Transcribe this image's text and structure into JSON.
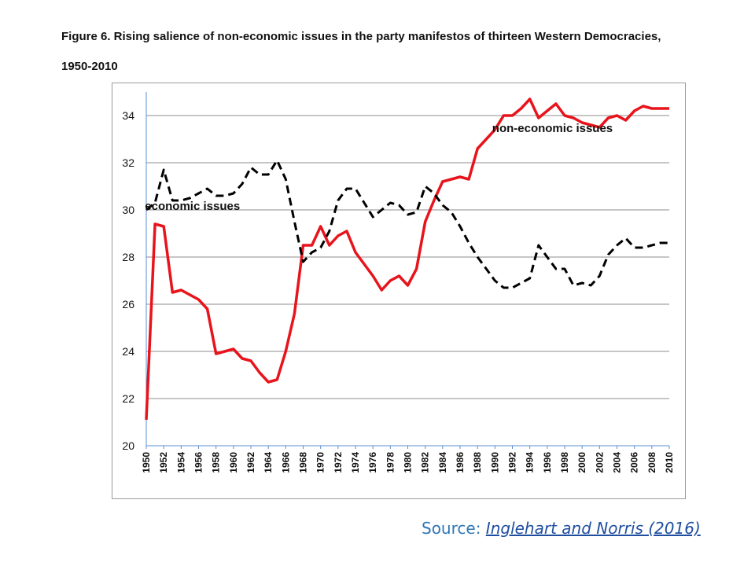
{
  "figure": {
    "title": "Figure 6. Rising salience of non-economic issues in the party manifestos of thirteen Western Democracies, 1950-2010"
  },
  "source": {
    "label": "Source:",
    "link_text": "Inglehart and Norris (2016)"
  },
  "chart_data": {
    "type": "line",
    "title": "Figure 6. Rising salience of non-economic issues in the party manifestos of thirteen Western Democracies, 1950-2010",
    "xlabel": "",
    "ylabel": "",
    "ylim": [
      20,
      35
    ],
    "yticks": [
      20,
      22,
      24,
      26,
      28,
      30,
      32,
      34
    ],
    "xlim": [
      1950,
      2010
    ],
    "xticks": [
      1950,
      1952,
      1954,
      1956,
      1958,
      1960,
      1962,
      1964,
      1966,
      1968,
      1970,
      1972,
      1974,
      1976,
      1978,
      1980,
      1982,
      1984,
      1986,
      1988,
      1990,
      1992,
      1994,
      1996,
      1998,
      2000,
      2002,
      2004,
      2006,
      2008,
      2010
    ],
    "grid": true,
    "x": [
      1950,
      1951,
      1952,
      1953,
      1954,
      1955,
      1956,
      1957,
      1958,
      1959,
      1960,
      1961,
      1962,
      1963,
      1964,
      1965,
      1966,
      1967,
      1968,
      1969,
      1970,
      1971,
      1972,
      1973,
      1974,
      1975,
      1976,
      1977,
      1978,
      1979,
      1980,
      1981,
      1982,
      1983,
      1984,
      1985,
      1986,
      1987,
      1988,
      1989,
      1990,
      1991,
      1992,
      1993,
      1994,
      1995,
      1996,
      1997,
      1998,
      1999,
      2000,
      2001,
      2002,
      2003,
      2004,
      2005,
      2006,
      2007,
      2008,
      2009,
      2010
    ],
    "series": [
      {
        "name": "non-economic issues",
        "color": "#e8141c",
        "style": "solid",
        "values": [
          21.1,
          29.4,
          29.3,
          26.5,
          26.6,
          26.4,
          26.2,
          25.8,
          23.9,
          24.0,
          24.1,
          23.7,
          23.6,
          23.1,
          22.7,
          22.8,
          24.0,
          25.6,
          28.5,
          28.5,
          29.3,
          28.5,
          28.9,
          29.1,
          28.2,
          27.7,
          27.2,
          26.6,
          27.0,
          27.2,
          26.8,
          27.5,
          29.5,
          30.4,
          31.2,
          31.3,
          31.4,
          31.3,
          32.6,
          33.0,
          33.4,
          34.0,
          34.0,
          34.3,
          34.7,
          33.9,
          34.2,
          34.5,
          34.0,
          33.9,
          33.7,
          33.6,
          33.5,
          33.9,
          34.0,
          33.8,
          34.2,
          34.4,
          34.3,
          34.3,
          34.3
        ]
      },
      {
        "name": "economic issues",
        "color": "#000000",
        "style": "dashed",
        "values": [
          30.0,
          30.3,
          31.7,
          30.4,
          30.4,
          30.5,
          30.7,
          30.9,
          30.6,
          30.6,
          30.7,
          31.1,
          31.8,
          31.5,
          31.5,
          32.1,
          31.3,
          29.5,
          27.8,
          28.2,
          28.4,
          29.1,
          30.4,
          30.9,
          30.9,
          30.3,
          29.7,
          30.0,
          30.3,
          30.2,
          29.8,
          29.9,
          31.0,
          30.7,
          30.2,
          29.9,
          29.3,
          28.6,
          28.0,
          27.5,
          27.0,
          26.7,
          26.7,
          26.9,
          27.1,
          28.5,
          28.0,
          27.5,
          27.5,
          26.8,
          26.9,
          26.8,
          27.2,
          28.1,
          28.5,
          28.8,
          28.4,
          28.4,
          28.5,
          28.6,
          28.6
        ]
      }
    ],
    "annotations": [
      {
        "text": "non-economic issues",
        "x": 1996.6,
        "y": 33.3
      },
      {
        "text": "economic issues",
        "x": 1955.3,
        "y": 30.0
      }
    ]
  }
}
